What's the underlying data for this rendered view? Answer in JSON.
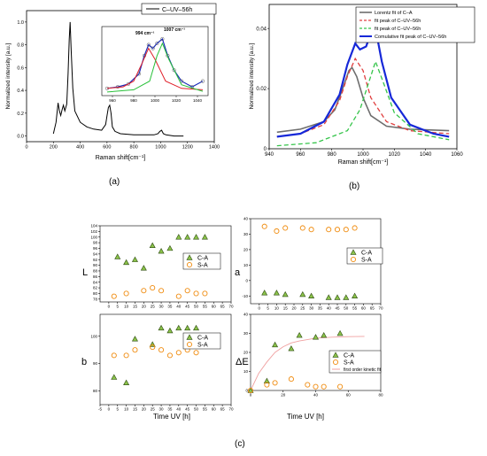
{
  "panel_labels": {
    "a": "(a)",
    "b": "(b)",
    "c": "(c)"
  },
  "chart_data": [
    {
      "id": "a",
      "type": "line",
      "title": "",
      "xlabel": "Raman shift[cm⁻¹]",
      "ylabel": "Normalized intensity [a.u.]",
      "xlim": [
        0,
        1400
      ],
      "ylim": [
        -0.05,
        1.1
      ],
      "xticks": [
        0,
        200,
        400,
        600,
        800,
        1000,
        1200,
        1400
      ],
      "yticks": [
        0.0,
        0.2,
        0.4,
        0.6,
        0.8,
        1.0
      ],
      "ytick_labels": [
        "0.0",
        "0.2",
        "0.4",
        "0.6",
        "0.8",
        "1.0"
      ],
      "legend": {
        "position": "top-right",
        "entries": [
          "C–UV–56h"
        ]
      },
      "series": [
        {
          "name": "C–UV–56h",
          "color": "#000000",
          "x": [
            200,
            220,
            235,
            245,
            255,
            265,
            275,
            285,
            300,
            310,
            318,
            325,
            333,
            345,
            360,
            400,
            450,
            500,
            560,
            590,
            600,
            610,
            620,
            630,
            640,
            660,
            700,
            800,
            950,
            980,
            994,
            1007,
            1020,
            1040,
            1100,
            1170
          ],
          "y": [
            0.02,
            0.12,
            0.29,
            0.22,
            0.18,
            0.23,
            0.27,
            0.22,
            0.28,
            0.55,
            0.85,
            1.0,
            0.75,
            0.42,
            0.22,
            0.12,
            0.08,
            0.06,
            0.05,
            0.1,
            0.18,
            0.25,
            0.27,
            0.2,
            0.08,
            0.04,
            0.02,
            0.01,
            0.01,
            0.02,
            0.04,
            0.05,
            0.02,
            0.01,
            0.0,
            0.0
          ]
        }
      ],
      "inset": {
        "xlim": [
          950,
          1050
        ],
        "xticks": [
          960,
          980,
          1000,
          1020,
          1040
        ],
        "annotations": [
          {
            "text": "994 cm⁻¹",
            "color": "#e0202a"
          },
          {
            "text": "1007 cm⁻¹",
            "color": "#29c13a"
          }
        ],
        "series": [
          {
            "name": "data",
            "color": "#1a2bb8",
            "x": [
              955,
              965,
              975,
              985,
              990,
              994,
              998,
              1002,
              1007,
              1012,
              1018,
              1025,
              1035,
              1045
            ],
            "y": [
              0.1,
              0.12,
              0.16,
              0.3,
              0.55,
              0.7,
              0.65,
              0.72,
              0.78,
              0.55,
              0.35,
              0.2,
              0.12,
              0.2
            ]
          },
          {
            "name": "fit 994",
            "color": "#e0202a",
            "x": [
              955,
              970,
              980,
              988,
              994,
              1000,
              1010,
              1025,
              1045
            ],
            "y": [
              0.1,
              0.12,
              0.2,
              0.45,
              0.65,
              0.5,
              0.2,
              0.1,
              0.08
            ]
          },
          {
            "name": "fit 1007",
            "color": "#29c13a",
            "x": [
              955,
              980,
              995,
              1002,
              1007,
              1013,
              1025,
              1045
            ],
            "y": [
              0.05,
              0.08,
              0.2,
              0.55,
              0.72,
              0.5,
              0.15,
              0.06
            ]
          }
        ]
      }
    },
    {
      "id": "b",
      "type": "line",
      "title": "",
      "xlabel": "Raman shift[cm⁻¹]",
      "ylabel": "Normalized intensity [a.u.]",
      "xlim": [
        940,
        1060
      ],
      "ylim": [
        0,
        0.048
      ],
      "xticks": [
        940,
        960,
        980,
        1000,
        1020,
        1040,
        1060
      ],
      "yticks": [
        0,
        0.02,
        0.04
      ],
      "ytick_labels": [
        "0",
        "0.02",
        "0.04"
      ],
      "legend": {
        "position": "top-right"
      },
      "series": [
        {
          "name": "Lorentz fit of C–A",
          "color": "#6e6e6e",
          "dash": "",
          "width": 1.6,
          "x": [
            945,
            960,
            975,
            982,
            987,
            991,
            993,
            996,
            1000,
            1005,
            1015,
            1030,
            1055
          ],
          "y": [
            0.0055,
            0.0065,
            0.009,
            0.013,
            0.02,
            0.026,
            0.027,
            0.024,
            0.017,
            0.011,
            0.0075,
            0.0065,
            0.006
          ]
        },
        {
          "name": "fit peak of C–UV–56h",
          "color": "#e04040",
          "dash": "5,3",
          "width": 1.3,
          "x": [
            945,
            960,
            975,
            985,
            990,
            995,
            1000,
            1005,
            1015,
            1030,
            1055
          ],
          "y": [
            0.004,
            0.005,
            0.008,
            0.016,
            0.024,
            0.03,
            0.026,
            0.017,
            0.009,
            0.006,
            0.005
          ]
        },
        {
          "name": "fit peak of C–UV–56h",
          "color": "#35c44a",
          "dash": "5,3",
          "width": 1.3,
          "x": [
            945,
            970,
            990,
            998,
            1003,
            1008,
            1013,
            1020,
            1035,
            1055
          ],
          "y": [
            0.001,
            0.002,
            0.006,
            0.013,
            0.021,
            0.029,
            0.022,
            0.012,
            0.005,
            0.003
          ]
        },
        {
          "name": "Comulative fit peak of C–UV–56h",
          "color": "#1628d8",
          "dash": "",
          "width": 2.2,
          "x": [
            945,
            960,
            975,
            985,
            990,
            995,
            998,
            1002,
            1006,
            1008,
            1012,
            1018,
            1030,
            1045,
            1055
          ],
          "y": [
            0.004,
            0.005,
            0.009,
            0.018,
            0.028,
            0.035,
            0.033,
            0.034,
            0.04,
            0.04,
            0.029,
            0.017,
            0.008,
            0.005,
            0.004
          ]
        }
      ]
    },
    {
      "id": "L",
      "type": "scatter",
      "ylabel": "L",
      "xlim": [
        -5,
        70
      ],
      "ylim": [
        77,
        104
      ],
      "xticks": [
        0,
        5,
        10,
        15,
        20,
        25,
        30,
        35,
        40,
        45,
        50,
        55,
        60,
        65,
        70
      ],
      "yticks": [
        78,
        80,
        82,
        84,
        86,
        88,
        90,
        92,
        94,
        96,
        98,
        100,
        102,
        104
      ],
      "legend": {
        "position": "right"
      },
      "series": [
        {
          "name": "C-A",
          "marker": "triangle",
          "x": [
            5,
            10,
            15,
            20,
            25,
            30,
            35,
            40,
            45,
            50,
            55
          ],
          "y": [
            93,
            91,
            92,
            89,
            97,
            95,
            96,
            100,
            100,
            100,
            100
          ]
        },
        {
          "name": "S-A",
          "marker": "circle",
          "x": [
            3,
            10,
            20,
            25,
            30,
            40,
            45,
            50,
            55
          ],
          "y": [
            79,
            80,
            81,
            82,
            81,
            79,
            81,
            80,
            80
          ]
        }
      ]
    },
    {
      "id": "a-color",
      "type": "scatter",
      "ylabel": "a",
      "xlim": [
        -5,
        70
      ],
      "ylim": [
        -15,
        40
      ],
      "xticks": [
        0,
        5,
        10,
        15,
        20,
        25,
        30,
        35,
        40,
        45,
        50,
        55,
        60,
        65,
        70
      ],
      "yticks": [
        -10,
        0,
        10,
        20,
        30,
        40
      ],
      "legend": {
        "position": "top-right"
      },
      "series": [
        {
          "name": "C-A",
          "marker": "triangle",
          "x": [
            3,
            10,
            15,
            25,
            30,
            40,
            45,
            50,
            55
          ],
          "y": [
            -8,
            -8,
            -9,
            -9,
            -10,
            -11,
            -11,
            -11,
            -10
          ]
        },
        {
          "name": "S-A",
          "marker": "circle",
          "x": [
            3,
            10,
            15,
            25,
            30,
            40,
            45,
            50,
            55
          ],
          "y": [
            35,
            32,
            34,
            34,
            33,
            33,
            33,
            33,
            34
          ]
        }
      ]
    },
    {
      "id": "b-color",
      "type": "scatter",
      "ylabel": "b",
      "xlim": [
        -5,
        70
      ],
      "ylim": [
        75,
        108
      ],
      "xticks": [
        -5,
        0,
        5,
        10,
        15,
        20,
        25,
        30,
        35,
        40,
        45,
        50,
        55,
        60,
        65,
        70
      ],
      "yticks": [
        80,
        90,
        100
      ],
      "xlabel": "Time UV [h]",
      "legend": {
        "position": "right"
      },
      "series": [
        {
          "name": "C-A",
          "marker": "triangle",
          "x": [
            3,
            10,
            15,
            25,
            30,
            35,
            40,
            45,
            50
          ],
          "y": [
            85,
            83,
            99,
            97,
            103,
            102,
            103,
            103,
            103
          ]
        },
        {
          "name": "S-A",
          "marker": "circle",
          "x": [
            3,
            10,
            15,
            25,
            30,
            35,
            40,
            45,
            50
          ],
          "y": [
            93,
            93,
            95,
            96,
            95,
            93,
            94,
            95,
            94
          ]
        }
      ]
    },
    {
      "id": "deltaE",
      "type": "scatter",
      "ylabel": "ΔE",
      "xlabel": "Time UV [h]",
      "xlim": [
        0,
        80
      ],
      "ylim": [
        0,
        40
      ],
      "xticks": [
        0,
        20,
        40,
        60,
        80
      ],
      "yticks": [
        0,
        10,
        20,
        30,
        40
      ],
      "legend": {
        "position": "top-right"
      },
      "series": [
        {
          "name": "C-A",
          "marker": "triangle",
          "x": [
            0,
            10,
            15,
            25,
            30,
            40,
            45,
            55
          ],
          "y": [
            0,
            5,
            24,
            22,
            29,
            28,
            29,
            30
          ]
        },
        {
          "name": "S-A",
          "marker": "circle",
          "x": [
            0,
            10,
            15,
            25,
            35,
            40,
            45,
            55
          ],
          "y": [
            0,
            3,
            4,
            6,
            3,
            2,
            2,
            2
          ]
        }
      ],
      "fit": {
        "name": "first order kinetic fit",
        "color": "#f0a0a0",
        "x": [
          0,
          5,
          10,
          15,
          20,
          25,
          30,
          40,
          50,
          60,
          70
        ],
        "y": [
          0,
          9,
          15,
          20,
          23,
          25,
          26,
          27.5,
          28,
          28.3,
          28.4
        ]
      }
    }
  ]
}
